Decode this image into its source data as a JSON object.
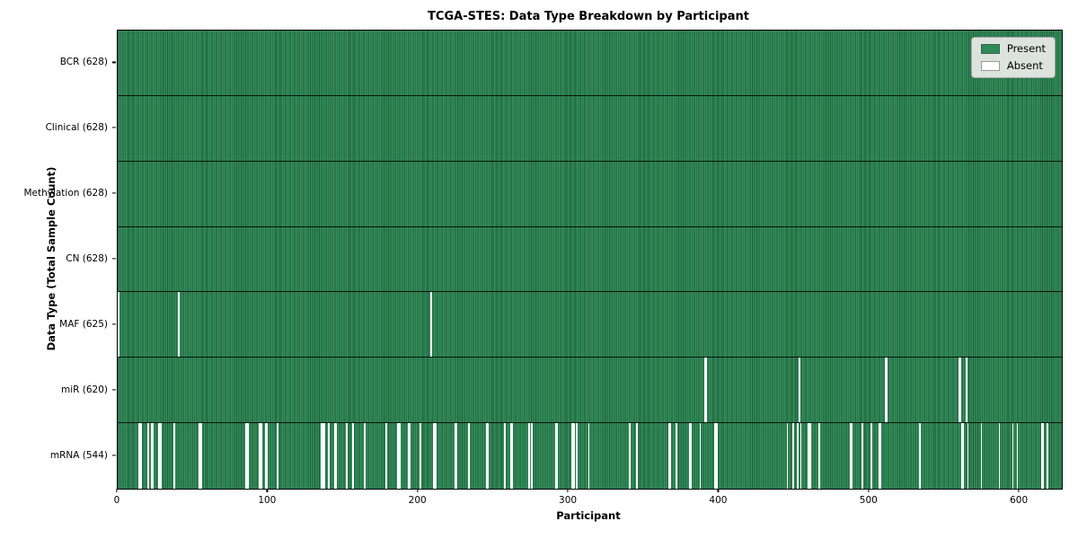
{
  "chart_data": {
    "type": "heatmap",
    "title": "TCGA-STES: Data Type Breakdown by Participant",
    "xlabel": "Participant",
    "ylabel": "Data Type (Total Sample Count)",
    "x_ticks": [
      0,
      100,
      200,
      300,
      400,
      500,
      600
    ],
    "x_range": [
      0,
      628
    ],
    "n_participants": 628,
    "grid": false,
    "legend_position": "upper right",
    "colors": {
      "present": "#2e8b57",
      "absent": "#ffffff"
    },
    "legend": [
      {
        "label": "Present",
        "key": "present"
      },
      {
        "label": "Absent",
        "key": "absent"
      }
    ],
    "rows": [
      {
        "name": "BCR",
        "label": "BCR (628)",
        "present_count": 628,
        "absent_count": 0,
        "absent_indices": []
      },
      {
        "name": "Clinical",
        "label": "Clinical (628)",
        "present_count": 628,
        "absent_count": 0,
        "absent_indices": []
      },
      {
        "name": "Methylation",
        "label": "Methylation (628)",
        "present_count": 628,
        "absent_count": 0,
        "absent_indices": []
      },
      {
        "name": "CN",
        "label": "CN (628)",
        "present_count": 628,
        "absent_count": 0,
        "absent_indices": []
      },
      {
        "name": "MAF",
        "label": "MAF (625)",
        "present_count": 625,
        "absent_count": 3,
        "absent_indices": [
          0,
          40,
          208
        ]
      },
      {
        "name": "miR",
        "label": "miR (620)",
        "present_count": 620,
        "absent_count": 8,
        "absent_indices": [
          390,
          391,
          453,
          510,
          511,
          559,
          560,
          564
        ]
      },
      {
        "name": "mRNA",
        "label": "mRNA (544)",
        "present_count": 544,
        "absent_count": 84,
        "absent_indices": [
          14,
          15,
          20,
          22,
          23,
          27,
          28,
          37,
          54,
          55,
          85,
          86,
          94,
          95,
          98,
          99,
          106,
          135,
          136,
          137,
          140,
          144,
          145,
          152,
          156,
          164,
          178,
          186,
          187,
          193,
          194,
          201,
          210,
          211,
          224,
          225,
          233,
          245,
          246,
          257,
          261,
          262,
          273,
          275,
          291,
          292,
          302,
          303,
          305,
          313,
          340,
          345,
          366,
          367,
          371,
          380,
          381,
          387,
          397,
          398,
          445,
          449,
          452,
          454,
          459,
          460,
          466,
          487,
          488,
          495,
          501,
          506,
          507,
          533,
          561,
          562,
          565,
          574,
          586,
          595,
          598,
          614,
          615,
          618
        ]
      }
    ]
  }
}
